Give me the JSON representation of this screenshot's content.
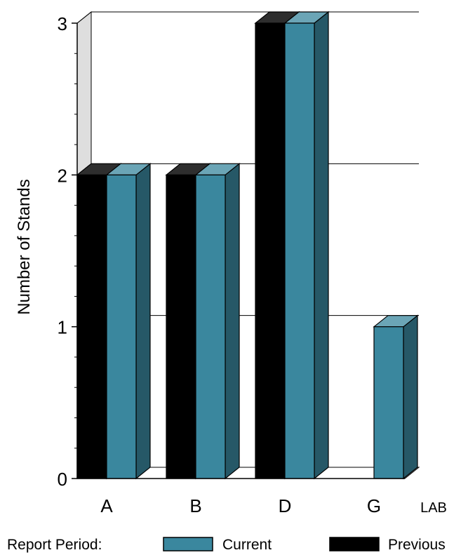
{
  "chart_data": {
    "type": "bar",
    "categories": [
      "A",
      "B",
      "D",
      "G"
    ],
    "series": [
      {
        "name": "Previous",
        "values": [
          2,
          2,
          3,
          0
        ]
      },
      {
        "name": "Current",
        "values": [
          2,
          2,
          3,
          1
        ]
      }
    ],
    "xlabel": "LAB",
    "ylabel": "Number of Stands",
    "ylim": [
      0,
      3
    ],
    "yticks": [
      0,
      1,
      2,
      3
    ],
    "grid": true,
    "legend": {
      "title": "Report Period:",
      "placement": "bottom",
      "entries": [
        "Current",
        "Previous"
      ]
    },
    "colors": {
      "Current": "#3a879e",
      "Previous": "#000000"
    }
  }
}
